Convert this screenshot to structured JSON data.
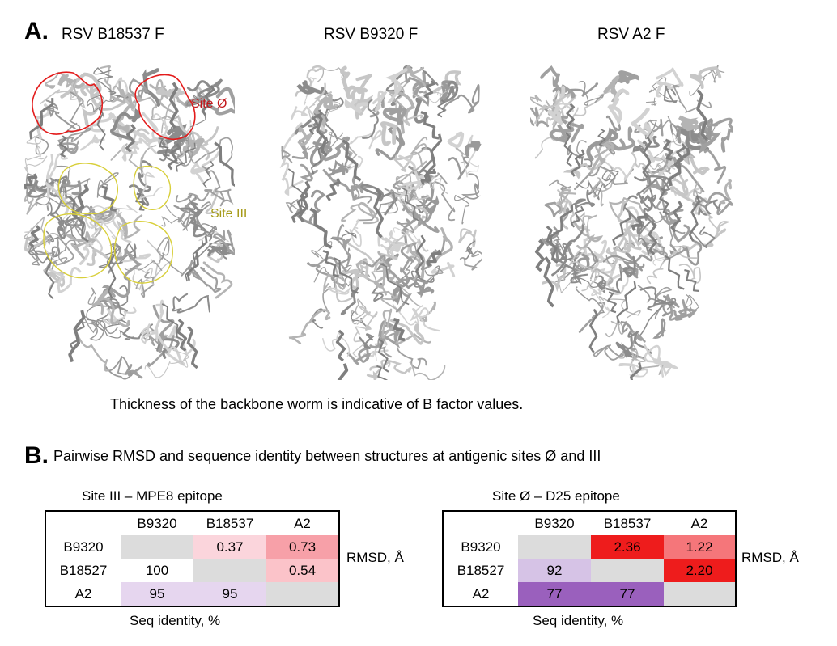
{
  "panelA": {
    "letter": "A.",
    "structures": [
      {
        "title": "RSV B18537 F"
      },
      {
        "title": "RSV B9320 F"
      },
      {
        "title": "RSV A2 F"
      }
    ],
    "site_labels": {
      "site0": "Site Ø",
      "site3": "Site III"
    },
    "caption": "Thickness of the backbone worm is indicative of B factor values."
  },
  "panelB": {
    "letter": "B.",
    "title": "Pairwise RMSD and sequence identity between structures at antigenic sites Ø and III",
    "rmsd_label": "RMSD, Å",
    "seq_label": "Seq identity, %",
    "tables": [
      {
        "title": "Site III – MPE8 epitope",
        "col_headers": [
          "B9320",
          "B18537",
          "A2"
        ],
        "row_headers": [
          "B9320",
          "B18527",
          "A2"
        ],
        "cells": [
          [
            "",
            "0.37",
            "0.73"
          ],
          [
            "100",
            "",
            "0.54"
          ],
          [
            "95",
            "95",
            ""
          ]
        ]
      },
      {
        "title": "Site Ø – D25 epitope",
        "col_headers": [
          "B9320",
          "B18537",
          "A2"
        ],
        "row_headers": [
          "B9320",
          "B18527",
          "A2"
        ],
        "cells": [
          [
            "",
            "2.36",
            "1.22"
          ],
          [
            "92",
            "",
            "2.20"
          ],
          [
            "77",
            "77",
            ""
          ]
        ]
      }
    ],
    "colors": {
      "diag": "#dcdcdc",
      "site3": [
        [
          "#dcdcdc",
          "#fbd5dc",
          "#f7a0a8"
        ],
        [
          "#ffffff",
          "#dcdcdc",
          "#fbc3c9"
        ],
        [
          "#e6d6ef",
          "#e6d6ef",
          "#dcdcdc"
        ]
      ],
      "site0": [
        [
          "#dcdcdc",
          "#ee1c1c",
          "#f5767a"
        ],
        [
          "#d6c3e6",
          "#dcdcdc",
          "#ee1c1c"
        ],
        [
          "#9a60bd",
          "#9a60bd",
          "#dcdcdc"
        ]
      ]
    }
  }
}
